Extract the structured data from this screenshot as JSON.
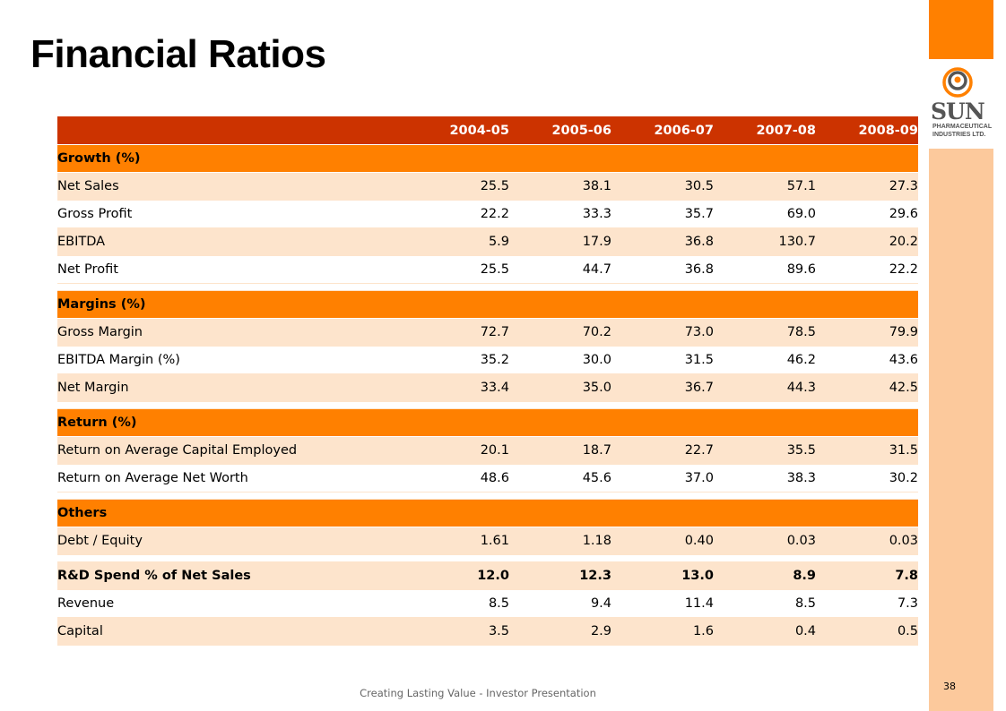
{
  "slide": {
    "title": "Financial Ratios",
    "footer": "Creating Lasting Value - Investor Presentation",
    "page_number": "38"
  },
  "logo": {
    "brand": "SUN",
    "line1": "PHARMACEUTICAL",
    "line2": "INDUSTRIES LTD.",
    "colors": {
      "orange": "#ff8000",
      "gray": "#555555"
    }
  },
  "colors": {
    "header_bg": "#cc3300",
    "section_bg": "#ff8000",
    "row_alt_bg": "#fde4cc",
    "sidebar_light": "#fcc99c"
  },
  "table": {
    "years": [
      "2004-05",
      "2005-06",
      "2006-07",
      "2007-08",
      "2008-09"
    ],
    "sections": [
      {
        "title": "Growth (%)",
        "rows": [
          {
            "label": "Net Sales",
            "values": [
              "25.5",
              "38.1",
              "30.5",
              "57.1",
              "27.3"
            ]
          },
          {
            "label": "Gross Profit",
            "values": [
              "22.2",
              "33.3",
              "35.7",
              "69.0",
              "29.6"
            ]
          },
          {
            "label": "EBITDA",
            "values": [
              "5.9",
              "17.9",
              "36.8",
              "130.7",
              "20.2"
            ]
          },
          {
            "label": "Net Profit",
            "values": [
              "25.5",
              "44.7",
              "36.8",
              "89.6",
              "22.2"
            ]
          }
        ]
      },
      {
        "title": "Margins (%)",
        "rows": [
          {
            "label": "Gross Margin",
            "values": [
              "72.7",
              "70.2",
              "73.0",
              "78.5",
              "79.9"
            ]
          },
          {
            "label": "EBITDA Margin (%)",
            "values": [
              "35.2",
              "30.0",
              "31.5",
              "46.2",
              "43.6"
            ]
          },
          {
            "label": "Net Margin",
            "values": [
              "33.4",
              "35.0",
              "36.7",
              "44.3",
              "42.5"
            ]
          }
        ]
      },
      {
        "title": "Return (%)",
        "rows": [
          {
            "label": "Return on Average Capital Employed",
            "values": [
              "20.1",
              "18.7",
              "22.7",
              "35.5",
              "31.5"
            ]
          },
          {
            "label": "Return on Average Net Worth",
            "values": [
              "48.6",
              "45.6",
              "37.0",
              "38.3",
              "30.2"
            ]
          }
        ]
      },
      {
        "title": "Others",
        "rows": [
          {
            "label": "Debt / Equity",
            "values": [
              "1.61",
              "1.18",
              "0.40",
              "0.03",
              "0.03"
            ]
          }
        ]
      }
    ],
    "rnd": {
      "label": "R&D Spend % of Net Sales",
      "values": [
        "12.0",
        "12.3",
        "13.0",
        "8.9",
        "7.8"
      ],
      "rows": [
        {
          "label": "Revenue",
          "values": [
            "8.5",
            "9.4",
            "11.4",
            "8.5",
            "7.3"
          ]
        },
        {
          "label": "Capital",
          "values": [
            "3.5",
            "2.9",
            "1.6",
            "0.4",
            "0.5"
          ]
        }
      ]
    }
  }
}
